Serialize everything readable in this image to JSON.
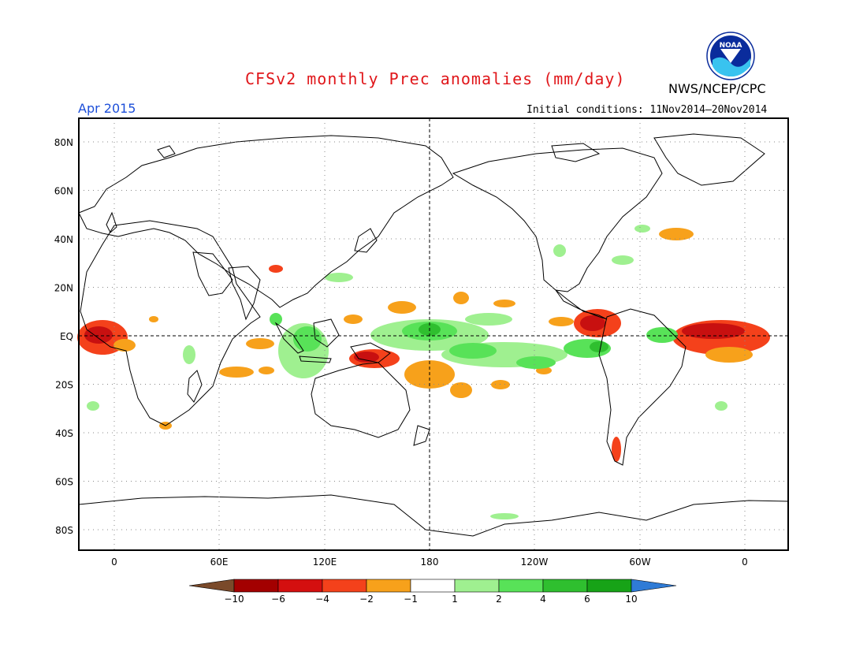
{
  "title": "CFSv2 monthly Prec anomalies (mm/day)",
  "agency": "NWS/NCEP/CPC",
  "logo_text": "NOAA",
  "valid_month": "Apr 2015",
  "initial_conditions": "Initial conditions: 11Nov2014–20Nov2014",
  "lat_labels": [
    "80N",
    "60N",
    "40N",
    "20N",
    "EQ",
    "20S",
    "40S",
    "60S",
    "80S"
  ],
  "lon_labels": [
    "0",
    "60E",
    "120E",
    "180",
    "120W",
    "60W",
    "0"
  ],
  "colorbar": {
    "colors": [
      "#7a4a2a",
      "#a30000",
      "#d40f0f",
      "#f4411b",
      "#f7a11b",
      "#ffffff",
      "#9ff090",
      "#58e258",
      "#2fbf2f",
      "#17a317",
      "#2f7bd6"
    ],
    "labels": [
      "−10",
      "−6",
      "−4",
      "−2",
      "−1",
      "1",
      "2",
      "4",
      "6",
      "10"
    ]
  },
  "anomaly_colors": {
    "dry_strong": "#c81010",
    "dry_mid": "#f4411b",
    "dry_weak": "#f7a11b",
    "wet_weak": "#9ff090",
    "wet_mid": "#58e258",
    "wet_strong": "#2fbf2f"
  }
}
